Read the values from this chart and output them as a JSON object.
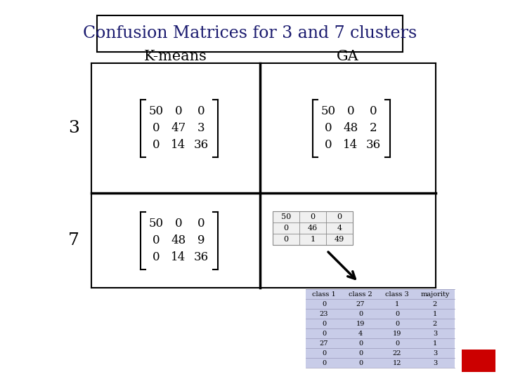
{
  "title": "Confusion Matrices for 3 and 7 clusters",
  "col_labels": [
    "K-means",
    "GA"
  ],
  "row_labels": [
    "3",
    "7"
  ],
  "matrix_3_kmeans": [
    [
      50,
      0,
      0
    ],
    [
      0,
      47,
      3
    ],
    [
      0,
      14,
      36
    ]
  ],
  "matrix_3_ga": [
    [
      50,
      0,
      0
    ],
    [
      0,
      48,
      2
    ],
    [
      0,
      14,
      36
    ]
  ],
  "matrix_7_kmeans": [
    [
      50,
      0,
      0
    ],
    [
      0,
      48,
      9
    ],
    [
      0,
      14,
      36
    ]
  ],
  "matrix_7_ga_small": [
    [
      50,
      0,
      0
    ],
    [
      0,
      46,
      4
    ],
    [
      0,
      1,
      49
    ]
  ],
  "table_headers": [
    "class 1",
    "class 2",
    "class 3",
    "majority"
  ],
  "table_data": [
    [
      0,
      27,
      1,
      2
    ],
    [
      23,
      0,
      0,
      1
    ],
    [
      0,
      19,
      0,
      2
    ],
    [
      0,
      4,
      19,
      3
    ],
    [
      27,
      0,
      0,
      1
    ],
    [
      0,
      0,
      22,
      3
    ],
    [
      0,
      0,
      12,
      3
    ]
  ],
  "bg_color": "#ffffff",
  "table_bg": "#c8cce8",
  "title_box_color": "#000000",
  "grid_line_color": "#000000",
  "bracket_color": "#000000",
  "matrix_font_size": 12,
  "label_font_size": 15,
  "title_font_size": 17,
  "small_matrix_font_size": 8,
  "table_font_size": 7,
  "title_color": "#1a1a6e"
}
